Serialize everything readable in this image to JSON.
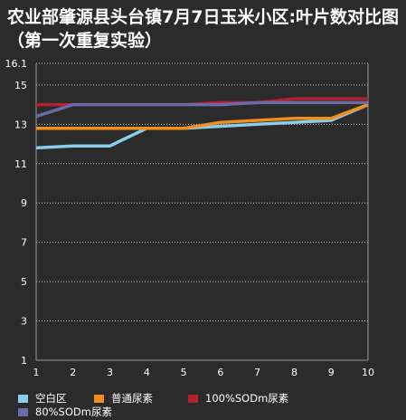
{
  "title": "农业部肇源县头台镇7月7日玉米小区:叶片数对比图（第一次重复实验）",
  "chart_data": {
    "type": "line",
    "title": "农业部肇源县头台镇7月7日玉米小区:叶片数对比图（第一次重复实验）",
    "xlabel": "",
    "ylabel": "",
    "x": [
      1,
      2,
      3,
      4,
      5,
      6,
      7,
      8,
      9,
      10
    ],
    "x_ticks": [
      "1",
      "2",
      "3",
      "4",
      "5",
      "6",
      "7",
      "8",
      "9",
      "10"
    ],
    "y_ticks": [
      "1",
      "3",
      "5",
      "7",
      "9",
      "11",
      "13",
      "15",
      "16.1"
    ],
    "y_tick_values": [
      1,
      3,
      5,
      7,
      9,
      11,
      13,
      15,
      16.1
    ],
    "ylim": [
      1,
      16.1
    ],
    "grid": true,
    "legend_position": "bottom",
    "series": [
      {
        "name": "空白区",
        "color": "#87ceeb",
        "values": [
          11.8,
          11.9,
          11.9,
          12.8,
          12.8,
          12.9,
          13.0,
          13.1,
          13.2,
          14.0
        ]
      },
      {
        "name": "普通尿素",
        "color": "#f28e1c",
        "values": [
          12.8,
          12.8,
          12.8,
          12.8,
          12.8,
          13.1,
          13.2,
          13.3,
          13.3,
          14.0
        ]
      },
      {
        "name": "100%SODm尿素",
        "color": "#b5202e",
        "values": [
          14.0,
          14.0,
          14.0,
          14.0,
          14.0,
          14.1,
          14.1,
          14.3,
          14.3,
          14.3
        ]
      },
      {
        "name": "80%SODm尿素",
        "color": "#6b6ba8",
        "values": [
          13.4,
          14.0,
          14.0,
          14.0,
          14.0,
          14.0,
          14.1,
          14.1,
          14.1,
          14.1
        ]
      }
    ]
  }
}
